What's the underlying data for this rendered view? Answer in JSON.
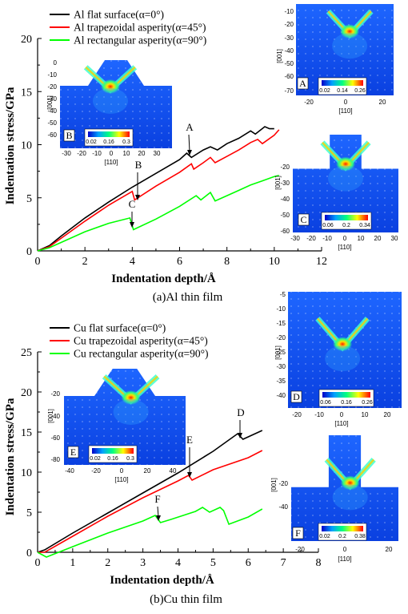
{
  "chart_data": [
    {
      "type": "line",
      "caption": "(a)Al thin film",
      "xlabel": "Indentation depth/Å",
      "ylabel": "Indentation stress/GPa",
      "xlim": [
        0,
        12
      ],
      "ylim": [
        0,
        20
      ],
      "xticks": [
        "0",
        "2",
        "4",
        "6",
        "8",
        "10",
        "12"
      ],
      "yticks": [
        "0",
        "5",
        "10",
        "15",
        "20"
      ],
      "series": [
        {
          "name": "Al flat surface(α=0°)",
          "color": "#000000",
          "points": [
            [
              0,
              0
            ],
            [
              0.5,
              0.5
            ],
            [
              1,
              1.4
            ],
            [
              2,
              3.1
            ],
            [
              3,
              4.6
            ],
            [
              4,
              6.0
            ],
            [
              5,
              7.3
            ],
            [
              6,
              8.6
            ],
            [
              6.3,
              9.2
            ],
            [
              6.5,
              8.8
            ],
            [
              7,
              9.5
            ],
            [
              7.3,
              9.8
            ],
            [
              7.6,
              9.5
            ],
            [
              8,
              10.1
            ],
            [
              8.5,
              10.6
            ],
            [
              9,
              11.3
            ],
            [
              9.2,
              11.0
            ],
            [
              9.6,
              11.7
            ],
            [
              9.8,
              11.5
            ],
            [
              10,
              11.5
            ]
          ]
        },
        {
          "name": "Al trapezoidal asperity(α=45°)",
          "color": "#ff0000",
          "points": [
            [
              0,
              0
            ],
            [
              0.5,
              0.4
            ],
            [
              1,
              1.2
            ],
            [
              2,
              2.8
            ],
            [
              3,
              4.3
            ],
            [
              4,
              5.6
            ],
            [
              4.1,
              4.8
            ],
            [
              5,
              6.1
            ],
            [
              6,
              7.4
            ],
            [
              6.5,
              8.2
            ],
            [
              6.6,
              7.7
            ],
            [
              7,
              8.3
            ],
            [
              7.3,
              8.8
            ],
            [
              7.5,
              8.3
            ],
            [
              8,
              8.9
            ],
            [
              8.5,
              9.5
            ],
            [
              9,
              10.2
            ],
            [
              9.3,
              10.5
            ],
            [
              9.5,
              10.1
            ],
            [
              10,
              10.9
            ],
            [
              10.2,
              11.4
            ]
          ]
        },
        {
          "name": "Al rectangular asperity(α=90°)",
          "color": "#00ff00",
          "points": [
            [
              0,
              0
            ],
            [
              0.5,
              0.3
            ],
            [
              1,
              0.8
            ],
            [
              2,
              1.8
            ],
            [
              3,
              2.6
            ],
            [
              3.9,
              3.1
            ],
            [
              4.05,
              2.0
            ],
            [
              5,
              3.0
            ],
            [
              6,
              4.2
            ],
            [
              6.7,
              5.2
            ],
            [
              6.9,
              4.8
            ],
            [
              7.3,
              5.5
            ],
            [
              7.5,
              4.7
            ],
            [
              8,
              5.2
            ],
            [
              8.5,
              5.7
            ],
            [
              9,
              6.2
            ],
            [
              9.5,
              6.6
            ],
            [
              10,
              7.0
            ],
            [
              10.2,
              7.1
            ]
          ]
        }
      ],
      "annotations": [
        {
          "label": "A",
          "x": 6.4,
          "y": 9.2
        },
        {
          "label": "B",
          "x": 4.1,
          "y": 4.8
        },
        {
          "label": "C",
          "x": 4.0,
          "y": 2.0
        }
      ]
    },
    {
      "type": "line",
      "caption": "(b)Cu thin film",
      "xlabel": "Indentation depth/Å",
      "ylabel": "Indentation stress/GPa",
      "xlim": [
        0,
        8
      ],
      "ylim": [
        0,
        25
      ],
      "xticks": [
        "0",
        "1",
        "2",
        "3",
        "4",
        "5",
        "6",
        "7",
        "8"
      ],
      "yticks": [
        "0",
        "5",
        "10",
        "15",
        "20",
        "25"
      ],
      "series": [
        {
          "name": "Cu flat surface(α=0°)",
          "color": "#000000",
          "points": [
            [
              0,
              0
            ],
            [
              0.2,
              0.3
            ],
            [
              1,
              2.4
            ],
            [
              2,
              4.9
            ],
            [
              3,
              7.4
            ],
            [
              4,
              9.9
            ],
            [
              5,
              12.6
            ],
            [
              5.7,
              14.8
            ],
            [
              5.85,
              14.1
            ],
            [
              6.4,
              15.2
            ]
          ]
        },
        {
          "name": "Cu trapezoidal asperity(α=45°)",
          "color": "#ff0000",
          "points": [
            [
              0,
              0
            ],
            [
              0.2,
              0.0
            ],
            [
              1,
              2.0
            ],
            [
              2,
              4.5
            ],
            [
              3,
              6.8
            ],
            [
              4,
              8.9
            ],
            [
              4.3,
              9.6
            ],
            [
              4.4,
              9.0
            ],
            [
              5,
              10.3
            ],
            [
              6,
              11.8
            ],
            [
              6.4,
              12.7
            ]
          ]
        },
        {
          "name": "Cu rectangular asperity(α=90°)",
          "color": "#00ff00",
          "points": [
            [
              0,
              0
            ],
            [
              0.25,
              -0.6
            ],
            [
              1,
              0.7
            ],
            [
              2,
              2.4
            ],
            [
              3,
              3.9
            ],
            [
              3.35,
              4.6
            ],
            [
              3.5,
              3.7
            ],
            [
              3.8,
              4.1
            ],
            [
              4.5,
              5.1
            ],
            [
              4.7,
              5.6
            ],
            [
              4.9,
              5.0
            ],
            [
              5.2,
              5.6
            ],
            [
              5.3,
              5.2
            ],
            [
              5.45,
              3.5
            ],
            [
              6,
              4.4
            ],
            [
              6.4,
              5.4
            ]
          ]
        }
      ],
      "annotations": [
        {
          "label": "D",
          "x": 5.85,
          "y": 14.1
        },
        {
          "label": "E",
          "x": 4.4,
          "y": 9.0
        },
        {
          "label": "F",
          "x": 3.5,
          "y": 3.7
        }
      ]
    }
  ],
  "insets": [
    {
      "letter": "A",
      "colorbar": [
        "0.02",
        "0.14",
        "0.26"
      ],
      "ylabel": "[001]",
      "xlabel": "[110]",
      "xticks": [
        "-20",
        "0",
        "20"
      ],
      "yticks": [
        "-10",
        "-20",
        "-30",
        "-40",
        "-50",
        "-60",
        "-70"
      ]
    },
    {
      "letter": "B",
      "colorbar": [
        "0.02",
        "0.16",
        "0.3"
      ],
      "ylabel": "[001]",
      "xlabel": "[110]",
      "xticks": [
        "-30",
        "-20",
        "-10",
        "0",
        "10",
        "20",
        "30"
      ],
      "yticks": [
        "0",
        "-10",
        "-20",
        "-30",
        "-40",
        "-50",
        "-60"
      ]
    },
    {
      "letter": "C",
      "colorbar": [
        "0.06",
        "0.2",
        "0.34"
      ],
      "ylabel": "[001]",
      "xlabel": "[110]",
      "xticks": [
        "-30",
        "-20",
        "-10",
        "0",
        "10",
        "20",
        "30"
      ],
      "yticks": [
        "-20",
        "-30",
        "-40",
        "-50",
        "-60"
      ]
    },
    {
      "letter": "D",
      "colorbar": [
        "0.06",
        "0.16",
        "0.26"
      ],
      "ylabel": "[001]",
      "xlabel": "[110]",
      "xticks": [
        "-20",
        "-10",
        "0",
        "10",
        "20"
      ],
      "yticks": [
        "-5",
        "-10",
        "-15",
        "-20",
        "-25",
        "-30",
        "-35",
        "-40"
      ]
    },
    {
      "letter": "E",
      "colorbar": [
        "0.02",
        "0.16",
        "0.3"
      ],
      "ylabel": "[001]",
      "xlabel": "[110]",
      "xticks": [
        "-40",
        "-20",
        "0",
        "20",
        "40"
      ],
      "yticks": [
        "-20",
        "-40",
        "-60",
        "-80"
      ]
    },
    {
      "letter": "F",
      "colorbar": [
        "0.02",
        "0.2",
        "0.38"
      ],
      "ylabel": "[001]",
      "xlabel": "[110]",
      "xticks": [
        "-20",
        "0",
        "20"
      ],
      "yticks": [
        "-20",
        "-40"
      ]
    }
  ]
}
